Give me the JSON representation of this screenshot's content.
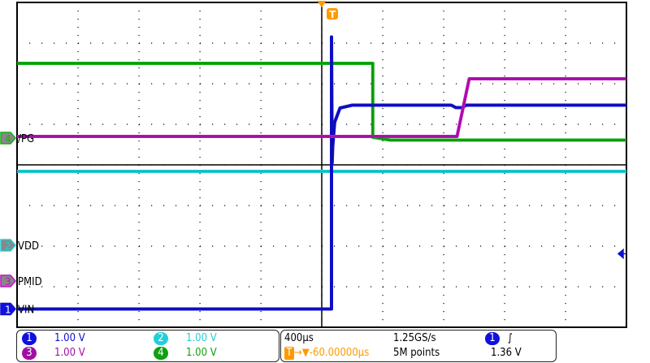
{
  "chart_data": {
    "type": "line",
    "title": "",
    "timebase": "400µs",
    "x_unit": "µs",
    "xlim": [
      -2000,
      2000
    ],
    "grid": true,
    "divisions": {
      "horizontal": 10,
      "vertical": 8
    },
    "trigger": {
      "source": "1",
      "slope": "rising",
      "level": "1.36 V",
      "level_v": 1.36,
      "delay": "-60.00000µs"
    },
    "series": [
      {
        "channel": "1",
        "name": "VIN",
        "color": "#1010d0",
        "scale": "1.00 V",
        "ground_div": -3.55,
        "points": [
          [
            -2000,
            0
          ],
          [
            64,
            0
          ],
          [
            64,
            6.7
          ],
          [
            68,
            3.6
          ],
          [
            72,
            4.0
          ],
          [
            85,
            4.6
          ],
          [
            120,
            4.95
          ],
          [
            200,
            5.02
          ],
          [
            850,
            5.02
          ],
          [
            880,
            4.96
          ],
          [
            920,
            4.96
          ],
          [
            950,
            5.02
          ],
          [
            2000,
            5.02
          ]
        ]
      },
      {
        "channel": "2",
        "name": "VDD",
        "color": "#20d0d8",
        "scale": "1.00 V",
        "ground_div": -1.98,
        "points": [
          [
            -2000,
            1.82
          ],
          [
            2000,
            1.82
          ]
        ]
      },
      {
        "channel": "3",
        "name": "PMID",
        "color": "#c010c0",
        "scale": "1.00 V",
        "ground_div": -2.86,
        "points": [
          [
            -2000,
            3.56
          ],
          [
            888,
            3.56
          ],
          [
            968,
            4.98
          ],
          [
            2000,
            4.98
          ]
        ]
      },
      {
        "channel": "4",
        "name": "/PG",
        "color": "#10b010",
        "scale": "1.00 V",
        "ground_div": 0.66,
        "points": [
          [
            -2000,
            1.84
          ],
          [
            335,
            1.84
          ],
          [
            335,
            0.02
          ],
          [
            450,
            -0.05
          ],
          [
            2000,
            -0.05
          ]
        ]
      }
    ]
  },
  "status": {
    "ch1": {
      "num": "1",
      "scale": "1.00 V"
    },
    "ch2": {
      "num": "2",
      "scale": "1.00 V"
    },
    "ch3": {
      "num": "3",
      "scale": "1.00 V"
    },
    "ch4": {
      "num": "4",
      "scale": "1.00 V"
    },
    "timebase": "400µs",
    "sample_rate": "1.25GS/s",
    "delay": "-60.00000µs",
    "record_length": "5M points",
    "trigger_source": "1",
    "trigger_slope_symbol": "∫",
    "trigger_level": "1.36 V",
    "trigger_marker": "T"
  },
  "colors": {
    "ch1": "#1010d0",
    "ch2": "#20d0d8",
    "ch3": "#a010a0",
    "ch4": "#10a010",
    "trigger": "#ff9900"
  }
}
